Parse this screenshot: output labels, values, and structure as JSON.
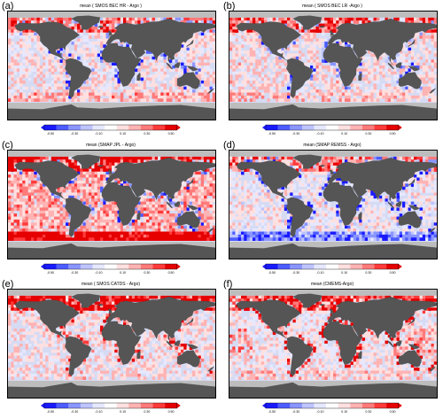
{
  "colorbar": {
    "ticks": [
      "-0.50",
      "-0.30",
      "-0.10",
      "0.10",
      "0.30",
      "0.50"
    ],
    "colors": [
      "#1a1aff",
      "#4d5cff",
      "#8a95ff",
      "#bec4ff",
      "#e6e8ff",
      "#ffffff",
      "#ffe0e0",
      "#ffb3b3",
      "#ff7a7a",
      "#ff3a3a",
      "#e60000"
    ]
  },
  "colors": {
    "land": "#555555",
    "ice": "#bdbdbd",
    "ocean_base": "#d6dbf4"
  },
  "panels": [
    {
      "letter": "(a)",
      "title": "mean ( SMOS BEC HR - Argo )",
      "bias": 0.05,
      "south": 0.12,
      "arctic": 0.35,
      "coastal": -0.45
    },
    {
      "letter": "(b)",
      "title": "mean ( SMOS BEC LR -Argo )",
      "bias": 0.08,
      "south": 0.05,
      "arctic": 0.4,
      "coastal": -0.35
    },
    {
      "letter": "(c)",
      "title": "mean (SMAP JPL - Argo)",
      "bias": 0.2,
      "south": 0.4,
      "arctic": 0.5,
      "coastal": -0.5
    },
    {
      "letter": "(d)",
      "title": "mean (SMAP REMSS - Argo)",
      "bias": 0.02,
      "south": -0.35,
      "arctic": 0.3,
      "coastal": -0.5
    },
    {
      "letter": "(e)",
      "title": "mean ( SMOS CATDS - Argo)",
      "bias": 0.06,
      "south": 0.02,
      "arctic": 0.45,
      "coastal": 0.3
    },
    {
      "letter": "(f)",
      "title": "mean (CMEMS-Argo)",
      "bias": 0.03,
      "south": 0.08,
      "arctic": 0.35,
      "coastal": 0.45
    }
  ]
}
